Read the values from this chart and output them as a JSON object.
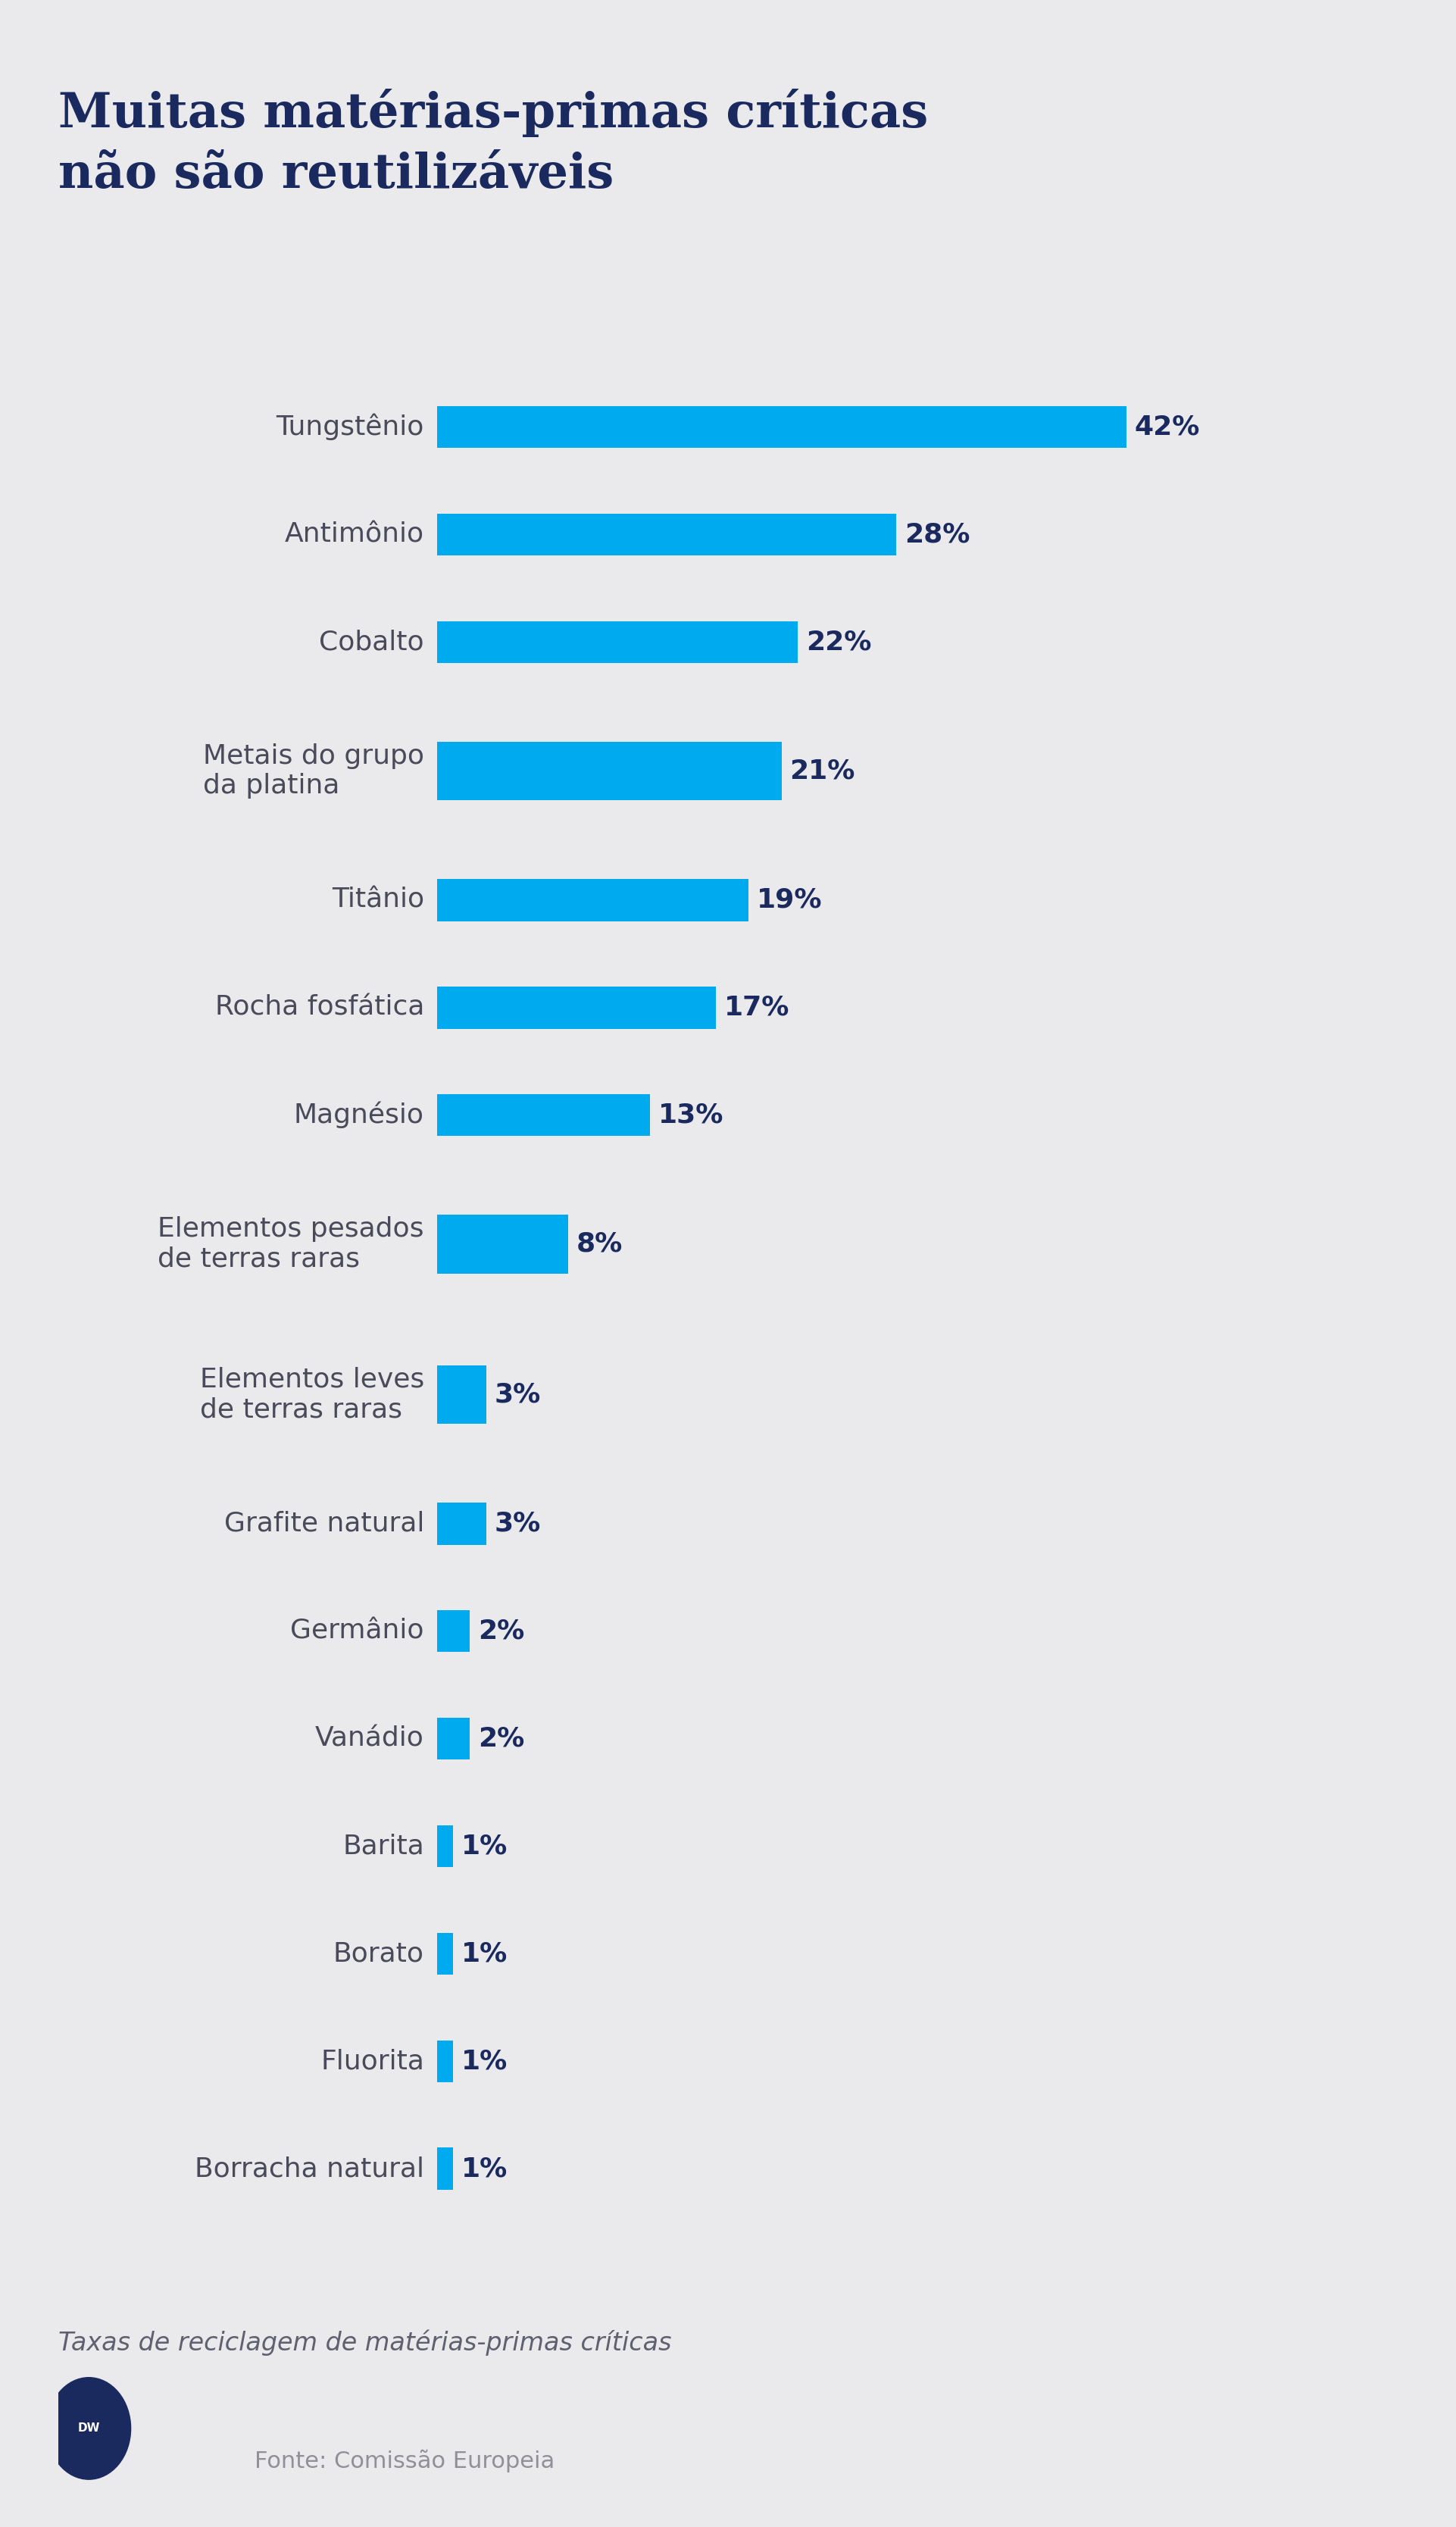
{
  "title_line1": "Muitas matérias-primas críticas",
  "title_line2": "não são reutilizáveis",
  "subtitle": "Taxas de reciclagem de matérias-primas críticas",
  "source": "Fonte: Comissão Europeia",
  "background_color": "#EAEAED",
  "bar_color": "#00AAEE",
  "title_color": "#1A2A5E",
  "label_color": "#4A4A5A",
  "value_color": "#1A2A5E",
  "subtitle_color": "#606070",
  "source_color": "#909098",
  "categories": [
    "Tungstênio",
    "Antimônio",
    "Cobalto",
    "Metais do grupo\nda platina",
    "Titânio",
    "Rocha fosfática",
    "Magnésio",
    "Elementos pesados\nde terras raras",
    "Elementos leves\nde terras raras",
    "Grafite natural",
    "Germânio",
    "Vanádio",
    "Barita",
    "Borato",
    "Fluorita",
    "Borracha natural"
  ],
  "values": [
    42,
    28,
    22,
    21,
    19,
    17,
    13,
    8,
    3,
    3,
    2,
    2,
    1,
    1,
    1,
    1
  ],
  "title_fontsize": 46,
  "label_fontsize": 26,
  "value_fontsize": 26,
  "subtitle_fontsize": 24,
  "source_fontsize": 22,
  "bar_height": 0.52,
  "xlim": [
    0,
    55
  ],
  "row_heights": [
    1.0,
    1.0,
    1.0,
    1.4,
    1.0,
    1.0,
    1.0,
    1.4,
    1.4,
    1.0,
    1.0,
    1.0,
    1.0,
    1.0,
    1.0,
    1.0
  ]
}
